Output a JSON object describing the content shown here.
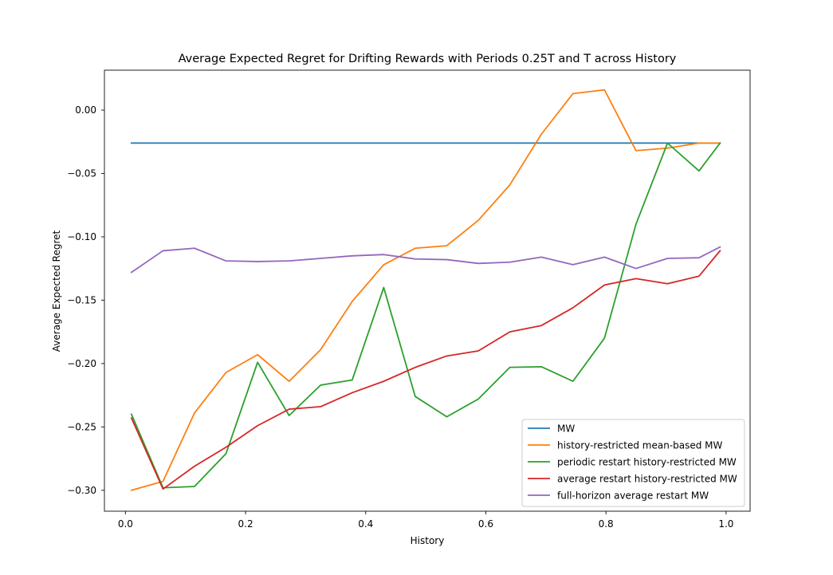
{
  "chart_data": {
    "type": "line",
    "title": "Average Expected Regret for Drifting Rewards with Periods 0.25T and T across History",
    "xlabel": "History",
    "ylabel": "Average Expected Regret",
    "xlim": [
      -0.035,
      1.04
    ],
    "ylim": [
      -0.3165,
      0.0315
    ],
    "xticks": [
      0.0,
      0.2,
      0.4,
      0.6,
      0.8,
      1.0
    ],
    "xtick_labels": [
      "0.0",
      "0.2",
      "0.4",
      "0.6",
      "0.8",
      "1.0"
    ],
    "yticks": [
      0.0,
      -0.05,
      -0.1,
      -0.15,
      -0.2,
      -0.25,
      -0.3
    ],
    "ytick_labels": [
      "0.00",
      "−0.05",
      "−0.10",
      "−0.15",
      "−0.20",
      "−0.25",
      "−0.30"
    ],
    "grid": false,
    "legend_position": "lower-right",
    "x": [
      0.01,
      0.0625,
      0.115,
      0.1675,
      0.22,
      0.2725,
      0.325,
      0.3775,
      0.43,
      0.4825,
      0.535,
      0.5875,
      0.64,
      0.6925,
      0.745,
      0.7975,
      0.85,
      0.9025,
      0.955,
      0.99
    ],
    "series": [
      {
        "name": "MW",
        "color": "#1f77b4",
        "values": [
          -0.026,
          -0.026,
          -0.026,
          -0.026,
          -0.026,
          -0.026,
          -0.026,
          -0.026,
          -0.026,
          -0.026,
          -0.026,
          -0.026,
          -0.026,
          -0.026,
          -0.026,
          -0.026,
          -0.026,
          -0.026,
          -0.026,
          -0.026
        ]
      },
      {
        "name": "history-restricted mean-based MW",
        "color": "#ff7f0e",
        "values": [
          -0.3,
          -0.293,
          -0.239,
          -0.207,
          -0.193,
          -0.214,
          -0.189,
          -0.151,
          -0.122,
          -0.109,
          -0.107,
          -0.087,
          -0.059,
          -0.019,
          0.013,
          0.016,
          -0.032,
          -0.03,
          -0.026,
          -0.026
        ]
      },
      {
        "name": "periodic restart history-restricted MW",
        "color": "#2ca02c",
        "values": [
          -0.24,
          -0.298,
          -0.297,
          -0.271,
          -0.199,
          -0.241,
          -0.217,
          -0.213,
          -0.14,
          -0.226,
          -0.242,
          -0.228,
          -0.203,
          -0.2025,
          -0.214,
          -0.18,
          -0.09,
          -0.026,
          -0.048,
          -0.026
        ]
      },
      {
        "name": "average restart history-restricted MW",
        "color": "#d62728",
        "values": [
          -0.243,
          -0.299,
          -0.281,
          -0.266,
          -0.249,
          -0.236,
          -0.234,
          -0.223,
          -0.214,
          -0.203,
          -0.194,
          -0.19,
          -0.175,
          -0.17,
          -0.156,
          -0.138,
          -0.133,
          -0.137,
          -0.131,
          -0.111
        ]
      },
      {
        "name": "full-horizon average restart MW",
        "color": "#9467bd",
        "values": [
          -0.128,
          -0.111,
          -0.109,
          -0.119,
          -0.1195,
          -0.119,
          -0.117,
          -0.115,
          -0.114,
          -0.1175,
          -0.118,
          -0.121,
          -0.12,
          -0.116,
          -0.122,
          -0.116,
          -0.125,
          -0.117,
          -0.1165,
          -0.108
        ]
      }
    ]
  }
}
